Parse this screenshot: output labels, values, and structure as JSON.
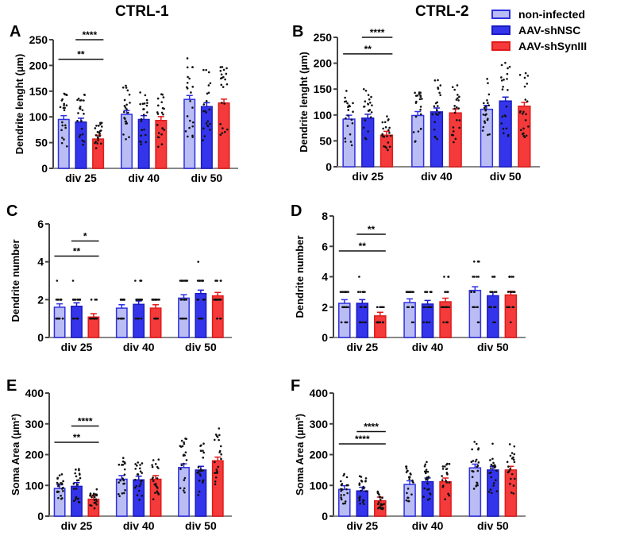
{
  "titles": [
    "CTRL-1",
    "CTRL-2"
  ],
  "legend": [
    {
      "label": "non-infected",
      "fill": "#b9bdf4",
      "stroke": "#2f2fe0"
    },
    {
      "label": "AAV-shNSC",
      "fill": "#3434ea",
      "stroke": "#1a1ac4"
    },
    {
      "label": "AAV-shSynIII",
      "fill": "#f43a3a",
      "stroke": "#e01a1a"
    }
  ],
  "chart_data": [
    {
      "panel": "A",
      "type": "bar",
      "title": "CTRL-1",
      "ylabel": "Dendrite lenght (µm)",
      "ylim": [
        0,
        250
      ],
      "yticks": [
        "0",
        "50",
        "100",
        "150",
        "200",
        "250"
      ],
      "categories": [
        "div 25",
        "div 40",
        "div 50"
      ],
      "series": [
        {
          "name": "non-infected",
          "values": [
            95,
            105,
            134
          ]
        },
        {
          "name": "AAV-shNSC",
          "values": [
            90,
            95,
            120
          ]
        },
        {
          "name": "AAV-shSynIII",
          "values": [
            57,
            93,
            127
          ]
        }
      ],
      "significance": [
        {
          "from": 0,
          "to": 2,
          "group": 0,
          "y": 212,
          "label": "**"
        },
        {
          "from": 1,
          "to": 2,
          "group": 0,
          "y": 250,
          "label": "****"
        }
      ]
    },
    {
      "panel": "B",
      "type": "bar",
      "title": "CTRL-2",
      "ylabel": "Dendrite lenght (µm)",
      "ylim": [
        0,
        250
      ],
      "yticks": [
        "0",
        "50",
        "100",
        "150",
        "200",
        "250"
      ],
      "categories": [
        "div 25",
        "div 40",
        "div 50"
      ],
      "series": [
        {
          "name": "non-infected",
          "values": [
            92,
            99,
            111
          ]
        },
        {
          "name": "AAV-shNSC",
          "values": [
            94,
            106,
            127
          ]
        },
        {
          "name": "AAV-shSynIII",
          "values": [
            61,
            104,
            117
          ]
        }
      ],
      "significance": [
        {
          "from": 0,
          "to": 2,
          "group": 0,
          "y": 218,
          "label": "**"
        },
        {
          "from": 1,
          "to": 2,
          "group": 0,
          "y": 250,
          "label": "****"
        }
      ]
    },
    {
      "panel": "C",
      "type": "bar",
      "title": "CTRL-1",
      "ylabel": "Dendrite number",
      "ylim": [
        0,
        6
      ],
      "yticks": [
        "0",
        "2",
        "4",
        "6"
      ],
      "categories": [
        "div 25",
        "div 40",
        "div 50"
      ],
      "series": [
        {
          "name": "non-infected",
          "values": [
            1.6,
            1.55,
            2.08
          ]
        },
        {
          "name": "AAV-shNSC",
          "values": [
            1.65,
            1.75,
            2.32
          ]
        },
        {
          "name": "AAV-shSynIII",
          "values": [
            1.08,
            1.55,
            2.2
          ]
        }
      ],
      "significance": [
        {
          "from": 0,
          "to": 2,
          "group": 0,
          "y": 4.3,
          "label": "**"
        },
        {
          "from": 1,
          "to": 2,
          "group": 0,
          "y": 5.1,
          "label": "*"
        }
      ]
    },
    {
      "panel": "D",
      "type": "bar",
      "title": "CTRL-2",
      "ylabel": "Dendrite number",
      "ylim": [
        0,
        8
      ],
      "yticks": [
        "0",
        "2",
        "4",
        "6",
        "8"
      ],
      "categories": [
        "div 25",
        "div 40",
        "div 50"
      ],
      "series": [
        {
          "name": "non-infected",
          "values": [
            2.25,
            2.3,
            3.1
          ]
        },
        {
          "name": "AAV-shNSC",
          "values": [
            2.25,
            2.2,
            2.75
          ]
        },
        {
          "name": "AAV-shSynIII",
          "values": [
            1.42,
            2.35,
            2.8
          ]
        }
      ],
      "significance": [
        {
          "from": 0,
          "to": 2,
          "group": 0,
          "y": 5.7,
          "label": "**"
        },
        {
          "from": 1,
          "to": 2,
          "group": 0,
          "y": 6.8,
          "label": "**"
        }
      ]
    },
    {
      "panel": "E",
      "type": "bar",
      "title": "CTRL-1",
      "ylabel": "Soma Area (µm²)",
      "ylim": [
        0,
        400
      ],
      "yticks": [
        "0",
        "100",
        "200",
        "300",
        "400"
      ],
      "categories": [
        "div 25",
        "div 40",
        "div 50"
      ],
      "series": [
        {
          "name": "non-infected",
          "values": [
            90,
            120,
            158
          ]
        },
        {
          "name": "AAV-shNSC",
          "values": [
            97,
            118,
            150
          ]
        },
        {
          "name": "AAV-shSynIII",
          "values": [
            55,
            120,
            180
          ]
        }
      ],
      "significance": [
        {
          "from": 0,
          "to": 2,
          "group": 0,
          "y": 240,
          "label": "**"
        },
        {
          "from": 1,
          "to": 2,
          "group": 0,
          "y": 293,
          "label": "****"
        }
      ]
    },
    {
      "panel": "F",
      "type": "bar",
      "title": "CTRL-2",
      "ylabel": "Soma Area (µm²)",
      "ylim": [
        0,
        400
      ],
      "yticks": [
        "0",
        "100",
        "200",
        "300",
        "400"
      ],
      "categories": [
        "div 25",
        "div 40",
        "div 50"
      ],
      "series": [
        {
          "name": "non-infected",
          "values": [
            87,
            103,
            157
          ]
        },
        {
          "name": "AAV-shNSC",
          "values": [
            82,
            112,
            150
          ]
        },
        {
          "name": "AAV-shSynIII",
          "values": [
            50,
            112,
            150
          ]
        }
      ],
      "significance": [
        {
          "from": 0,
          "to": 2,
          "group": 0,
          "y": 235,
          "label": "****"
        },
        {
          "from": 1,
          "to": 2,
          "group": 0,
          "y": 275,
          "label": "****"
        }
      ]
    }
  ]
}
